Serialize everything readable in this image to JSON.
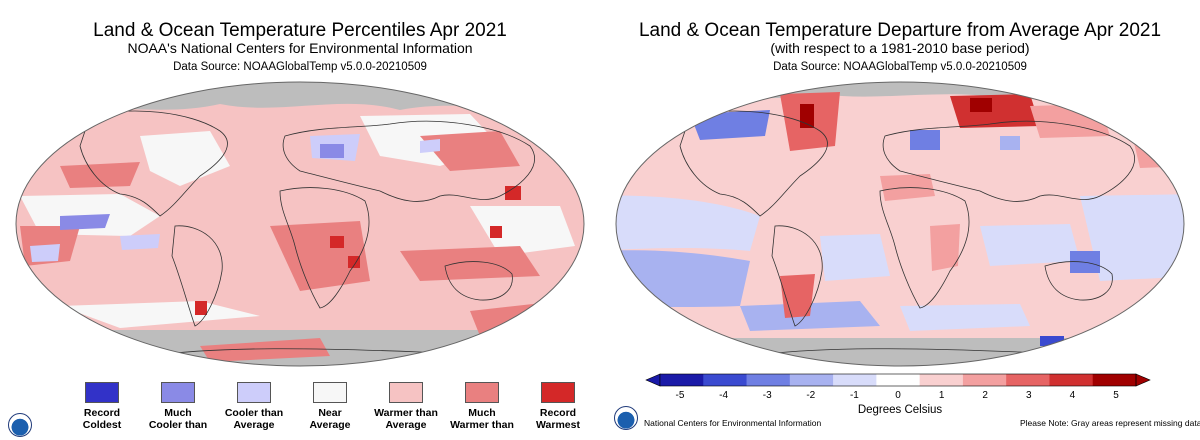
{
  "left": {
    "title": "Land & Ocean Temperature Percentiles Apr 2021",
    "subtitle": "NOAA's National Centers for Environmental Information",
    "source": "Data Source: NOAAGlobalTemp v5.0.0-20210509",
    "legend": [
      {
        "label": "Record\nColdest",
        "color": "#3232c8"
      },
      {
        "label": "Much\nCooler than",
        "color": "#8a8ae6"
      },
      {
        "label": "Cooler than\nAverage",
        "color": "#cdcdfa"
      },
      {
        "label": "Near\nAverage",
        "color": "#f7f7f7"
      },
      {
        "label": "Warmer than\nAverage",
        "color": "#f6c3c3"
      },
      {
        "label": "Much\nWarmer than",
        "color": "#e98080"
      },
      {
        "label": "Record\nWarmest",
        "color": "#d42828"
      }
    ]
  },
  "right": {
    "title": "Land & Ocean Temperature Departure from Average Apr 2021",
    "subtitle": "(with respect to a 1981-2010 base period)",
    "source": "Data Source: NOAAGlobalTemp v5.0.0-20210509",
    "colorbar": {
      "label": "Degrees Celsius",
      "ticks": [
        "-5",
        "-4",
        "-3",
        "-2",
        "-1",
        "0",
        "1",
        "2",
        "3",
        "4",
        "5"
      ],
      "min": -5,
      "max": 5,
      "stops": [
        "#1a1aa8",
        "#3a4ad0",
        "#6f7fe3",
        "#a8b2f0",
        "#d8dcfa",
        "#ffffff",
        "#f9d0d0",
        "#f3a0a0",
        "#e66464",
        "#d03030",
        "#a00000"
      ]
    },
    "footer_left": "National Centers for Environmental Information",
    "footer_right": "Please Note: Gray areas represent missing data"
  },
  "colors": {
    "missing": "#bdbdbd",
    "coastline": "#333333"
  }
}
